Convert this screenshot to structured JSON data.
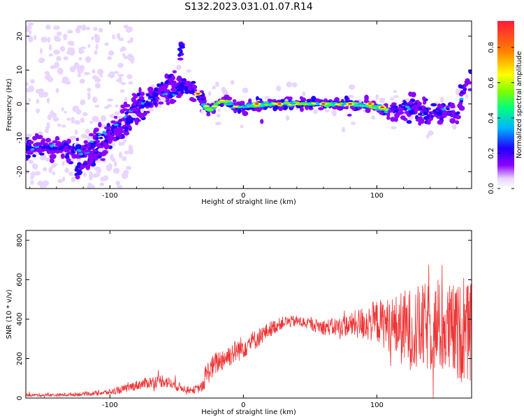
{
  "title": "S132.2023.031.01.07.R14",
  "chart_data": [
    {
      "type": "heatmap",
      "xlabel": "Height of straight line (km)",
      "ylabel": "Frequency (Hz)",
      "xlim": [
        -163,
        171
      ],
      "ylim": [
        -25,
        24.5
      ],
      "xticks": [
        -100,
        0,
        100
      ],
      "yticks": [
        20,
        10,
        0,
        -10,
        -20
      ],
      "colorbar": {
        "label": "Normalized spectral amplitude",
        "range": [
          0,
          0.95
        ],
        "ticks": [
          "0.0",
          "0.2",
          "0.4",
          "0.6",
          "0.8"
        ],
        "colormap": [
          "#ffffff",
          "#e9d5ff",
          "#8b00ff",
          "#2000ff",
          "#00b4ff",
          "#00ff7f",
          "#7fff00",
          "#ffff00",
          "#ff8000",
          "#ff1a3c"
        ]
      },
      "ridge": {
        "description_points_x": [
          -160,
          -140,
          -120,
          -110,
          -100,
          -90,
          -80,
          -70,
          -60,
          -50,
          -45,
          -40,
          -35,
          -30,
          -25,
          -20,
          -15,
          -10,
          -5,
          0,
          20,
          40,
          60,
          80,
          100,
          110,
          120,
          130,
          140,
          150,
          160,
          168
        ],
        "description_points_y": [
          -13,
          -13,
          -14,
          -11,
          -8,
          -4,
          0,
          2,
          3,
          4,
          5,
          4,
          3,
          0,
          -2,
          0,
          1,
          0,
          -1,
          -1,
          0,
          0,
          0,
          0,
          -1,
          -2,
          -1,
          -1,
          -3,
          -2,
          -3,
          7
        ],
        "peak_amplitude_points_x": [
          -34,
          10,
          27,
          60,
          80,
          95,
          104
        ],
        "peak_amplitude_points_y": [
          3,
          0,
          0,
          0,
          0,
          0,
          -1
        ]
      },
      "secondary_branch": {
        "x": [
          -125,
          -110,
          -95,
          -80,
          -70,
          -60,
          -50,
          -45
        ],
        "y": [
          -20,
          -15,
          -9,
          -4,
          0,
          5,
          10,
          19
        ]
      }
    },
    {
      "type": "line",
      "xlabel": "Height of straight line (km)",
      "ylabel": "SNR (10 * v/v)",
      "xlim": [
        -163,
        171
      ],
      "ylim": [
        0,
        850
      ],
      "xticks": [
        -100,
        0,
        100
      ],
      "yticks": [
        0,
        200,
        400,
        600,
        800
      ],
      "color": "#ee3333",
      "envelope": {
        "x": [
          -163,
          -140,
          -120,
          -100,
          -90,
          -80,
          -70,
          -60,
          -50,
          -45,
          -40,
          -35,
          -30,
          -28,
          -20,
          -10,
          0,
          10,
          20,
          30,
          40,
          50,
          60,
          70,
          80,
          90,
          100,
          110,
          120,
          130,
          140,
          150,
          160,
          170
        ],
        "mean": [
          15,
          15,
          20,
          30,
          45,
          65,
          80,
          90,
          60,
          50,
          40,
          45,
          60,
          120,
          180,
          220,
          260,
          300,
          350,
          385,
          390,
          375,
          360,
          360,
          370,
          380,
          390,
          370,
          350,
          350,
          360,
          350,
          330,
          330
        ],
        "spread": [
          8,
          8,
          10,
          15,
          20,
          25,
          30,
          35,
          25,
          20,
          18,
          20,
          30,
          60,
          60,
          60,
          60,
          50,
          40,
          30,
          30,
          30,
          40,
          50,
          60,
          90,
          110,
          140,
          200,
          220,
          230,
          240,
          250,
          250
        ]
      }
    }
  ]
}
